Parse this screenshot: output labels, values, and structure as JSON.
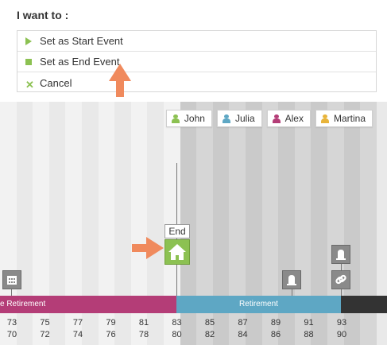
{
  "menu": {
    "heading": "I want to :",
    "items": [
      {
        "label": "Set as Start Event",
        "icon": "play-triangle-icon"
      },
      {
        "label": "Set as End Event",
        "icon": "square-stop-icon"
      },
      {
        "label": "Cancel",
        "icon": "x-icon"
      }
    ],
    "accent_color": "#8cc152"
  },
  "legend": [
    {
      "name": "John",
      "color": "#8cc152"
    },
    {
      "name": "Julia",
      "color": "#5ea7c4"
    },
    {
      "name": "Alex",
      "color": "#b43d77"
    },
    {
      "name": "Martina",
      "color": "#e8b43a"
    }
  ],
  "bars": {
    "left_label": "e Retirement",
    "right_label": "Retirement",
    "left_color": "#b43d77",
    "right_color": "#5ea7c4"
  },
  "events": {
    "end_label": "End"
  },
  "ticks_top": [
    "73",
    "75",
    "77",
    "79",
    "81",
    "83",
    "85",
    "87",
    "89",
    "91",
    "93"
  ],
  "ticks_bottom": [
    "70",
    "72",
    "74",
    "76",
    "78",
    "80",
    "82",
    "84",
    "86",
    "88",
    "90"
  ]
}
